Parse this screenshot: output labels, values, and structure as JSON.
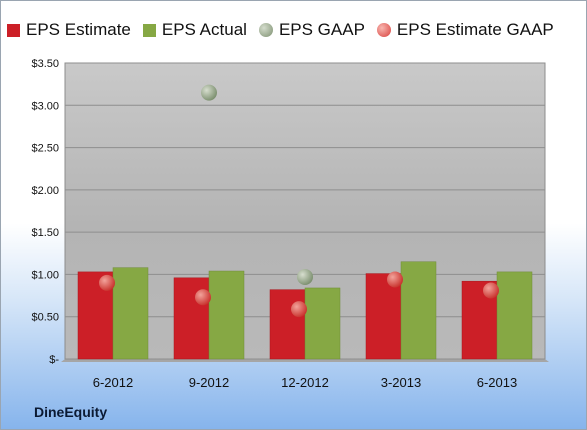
{
  "chart_data": {
    "type": "bar",
    "categories": [
      "6-2012",
      "9-2012",
      "12-2012",
      "3-2013",
      "6-2013"
    ],
    "series": [
      {
        "name": "EPS Estimate",
        "kind": "bar",
        "color": "#cc1f27",
        "values": [
          1.03,
          0.96,
          0.82,
          1.01,
          0.92
        ]
      },
      {
        "name": "EPS Actual",
        "kind": "bar",
        "color": "#86a844",
        "values": [
          1.08,
          1.04,
          0.84,
          1.15,
          1.03
        ]
      },
      {
        "name": "EPS GAAP",
        "kind": "marker",
        "color": "#8a9e7e",
        "values": [
          null,
          3.15,
          0.97,
          null,
          null
        ]
      },
      {
        "name": "EPS Estimate GAAP",
        "kind": "marker",
        "color": "#e04a45",
        "values": [
          0.9,
          0.73,
          0.59,
          0.94,
          0.81
        ]
      }
    ],
    "y_ticks": [
      "$-",
      "$0.50",
      "$1.00",
      "$1.50",
      "$2.00",
      "$2.50",
      "$3.00",
      "$3.50"
    ],
    "ylim": [
      0,
      3.5
    ],
    "grid": true,
    "legend_position": "top",
    "title": "",
    "xlabel": "",
    "ylabel": ""
  },
  "footer": {
    "company": "DineEquity"
  }
}
